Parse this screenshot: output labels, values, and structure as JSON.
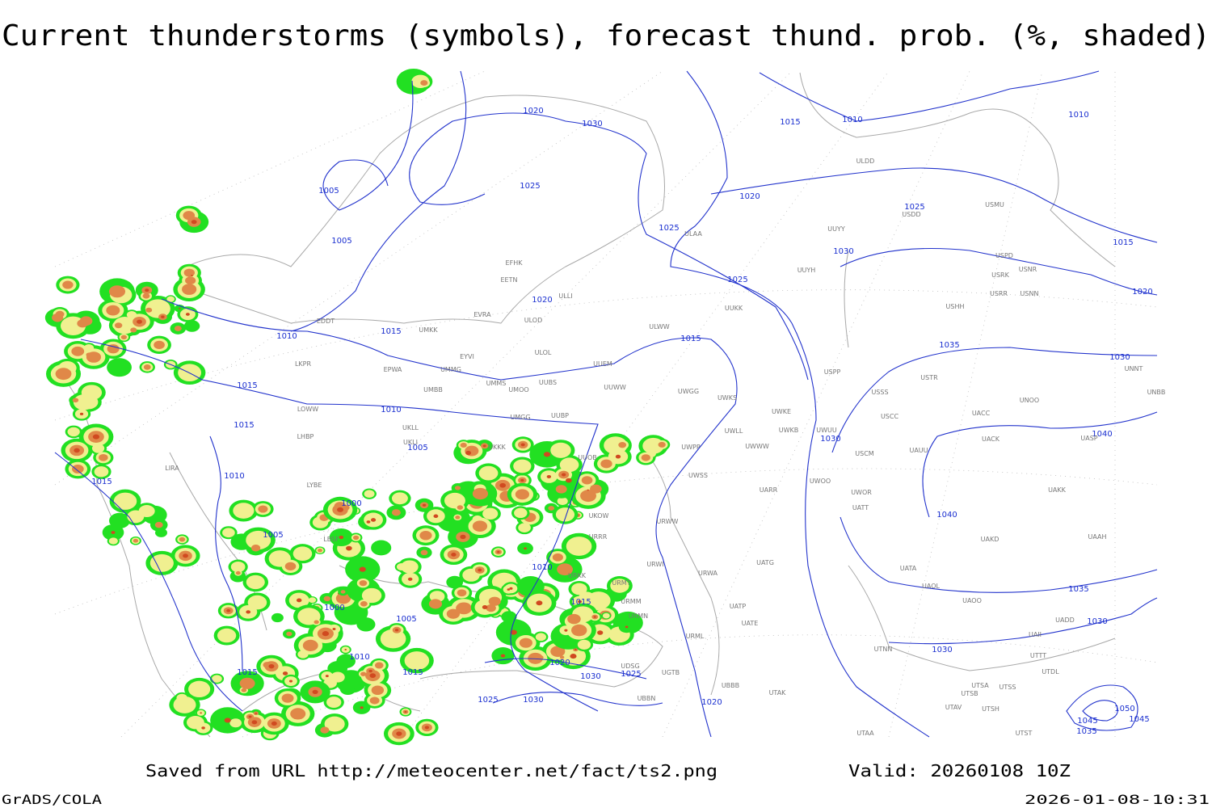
{
  "title": "Current thunderstorms (symbols), forecast thund. prob. (%, shaded)",
  "footer": {
    "saved_from": "Saved from URL http://meteocenter.net/fact/ts2.png",
    "valid": "Valid: 20260108 10Z",
    "software": "GrADS/COLA",
    "timestamp": "2026-01-08-10:31"
  },
  "isobar_labels": [
    "1020",
    "1030",
    "1015",
    "1010",
    "1010",
    "1005",
    "1025",
    "1020",
    "1005",
    "1025",
    "1025",
    "1015",
    "1030",
    "1025",
    "1020",
    "1020",
    "1010",
    "1015",
    "1015",
    "1035",
    "1030",
    "1015",
    "1010",
    "1015",
    "1030",
    "1040",
    "1005",
    "1010",
    "1015",
    "1000",
    "1040",
    "1005",
    "1010",
    "1035",
    "1000",
    "1005",
    "1015",
    "1030",
    "1030",
    "1010",
    "1015",
    "1015",
    "1020",
    "1030",
    "1025",
    "1025",
    "1030",
    "1020",
    "1045",
    "1050",
    "1045",
    "1035"
  ],
  "station_codes": [
    "ULDD",
    "UUYY",
    "ULAA",
    "USDD",
    "USMU",
    "USPD",
    "USRK",
    "USNR",
    "USRR",
    "USNN",
    "USHH",
    "UUYH",
    "UUKK",
    "EFHK",
    "EETN",
    "ULLI",
    "EVRA",
    "ULOD",
    "EDDT",
    "UMKK",
    "ULWW",
    "EYVI",
    "ULOL",
    "UUEM",
    "EPWA",
    "UMMG",
    "LKPR",
    "UMMS",
    "UUBS",
    "UUWW",
    "UMOO",
    "UMBB",
    "UWGG",
    "UWKS",
    "USPP",
    "USSS",
    "USTR",
    "UNOO",
    "UNNT",
    "UNBB",
    "LOWW",
    "UKLL",
    "UMGG",
    "UUBP",
    "UWKE",
    "UWLL",
    "UWKB",
    "UWUU",
    "USCC",
    "UACC",
    "UACK",
    "UASP",
    "LHBP",
    "UKLI",
    "UKKK",
    "UWPP",
    "UWWW",
    "USCM",
    "UAUU",
    "UUOB",
    "LIRA",
    "UWSS",
    "LYBE",
    "UARR",
    "UWOO",
    "UWOR",
    "UAKK",
    "URWW",
    "UATT",
    "UKOW",
    "URRR",
    "LBSF",
    "UAKD",
    "UAAH",
    "UATG",
    "URWI",
    "UATA",
    "UAOL",
    "UAOO",
    "URMT",
    "URKK",
    "URMM",
    "URMN",
    "UATP",
    "UATE",
    "URML",
    "UAII",
    "UADD",
    "UTTT",
    "UTDL",
    "UTNN",
    "UTSA",
    "UTSS",
    "UTSB",
    "UTAK",
    "UBBB",
    "UTAV",
    "UTSH",
    "UTAA",
    "UTST",
    "UDSG",
    "UGTB",
    "UBBN",
    "URWA"
  ]
}
